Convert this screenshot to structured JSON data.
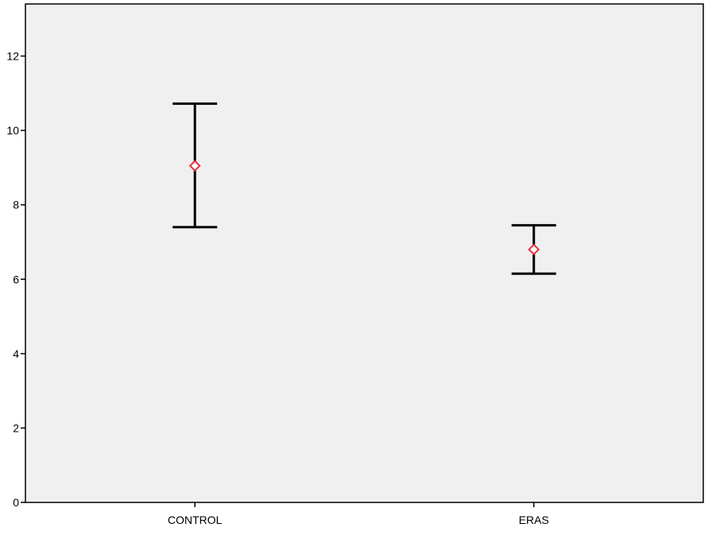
{
  "chart_data": {
    "type": "error_bar",
    "title": "",
    "xlabel": "",
    "ylabel": "",
    "ylim": [
      0,
      13.4
    ],
    "yticks": [
      0,
      2,
      4,
      6,
      8,
      10,
      12
    ],
    "ytick_labels": [
      "0",
      "2",
      "4",
      "6",
      "8",
      "10",
      "12"
    ],
    "categories": [
      "CONTROL",
      "ERAS"
    ],
    "series": [
      {
        "mean": [
          9.05,
          6.8
        ],
        "lower": [
          7.4,
          6.15
        ],
        "upper": [
          10.72,
          7.45
        ]
      }
    ],
    "grid": false,
    "colors": {
      "plot_background": "#f0f0f0",
      "frame": "#000000",
      "error_bar": "#000000",
      "mean_marker": "#e8303a"
    }
  }
}
